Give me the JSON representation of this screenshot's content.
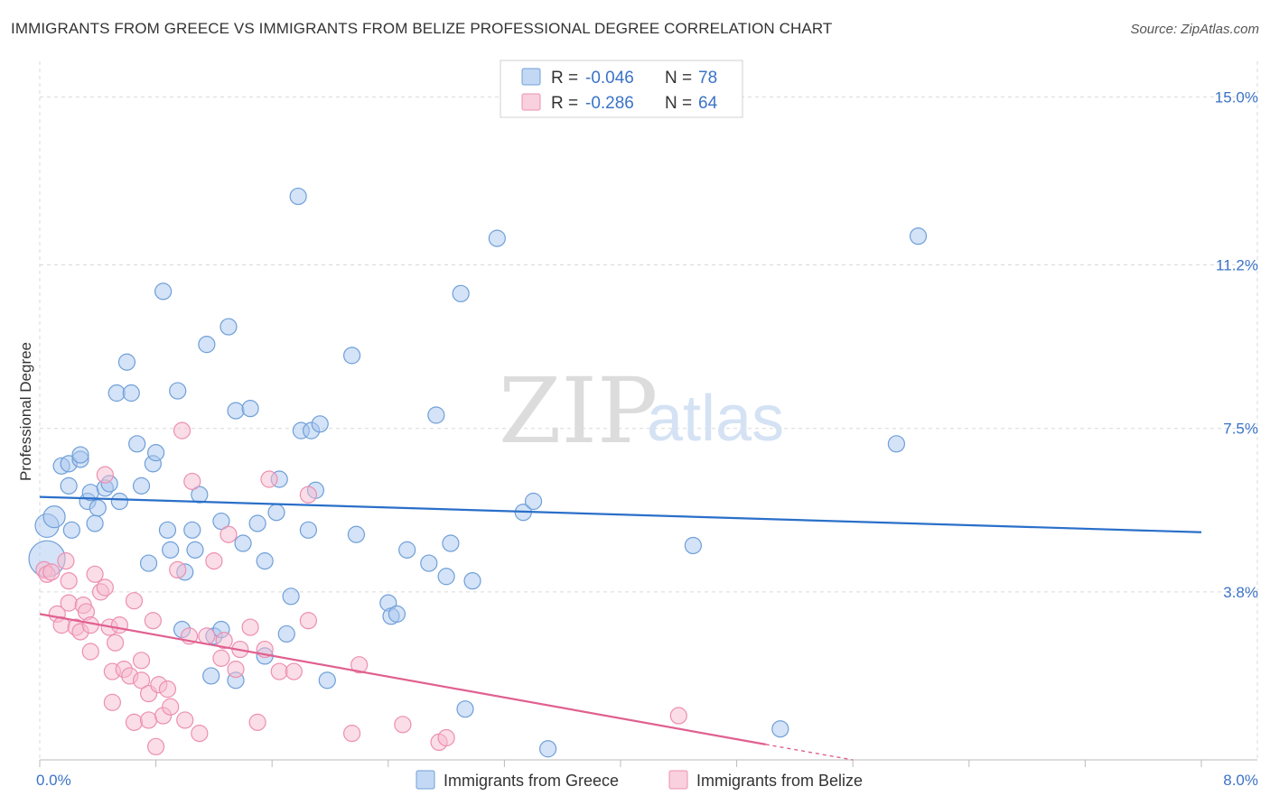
{
  "header": {
    "title": "IMMIGRANTS FROM GREECE VS IMMIGRANTS FROM BELIZE PROFESSIONAL DEGREE CORRELATION CHART",
    "source": "Source: ZipAtlas.com"
  },
  "watermark": {
    "zip": "ZIP",
    "atlas": "atlas"
  },
  "legend": {
    "rows": [
      {
        "r_label": "R =",
        "r_value": "-0.046",
        "n_label": "N =",
        "n_value": "78"
      },
      {
        "r_label": "R =",
        "r_value": "-0.286",
        "n_label": "N =",
        "n_value": "64"
      }
    ]
  },
  "colors": {
    "greece_fill": "#a9c8ef",
    "greece_stroke": "#6f9fd8",
    "greece_line": "#2a6fc9",
    "belize_fill": "#f7bcd0",
    "belize_stroke": "#ec8fb0",
    "belize_line": "#e0608f",
    "grid": "#d9d9d9",
    "tick_text": "#3b73c7"
  },
  "chart_data": {
    "type": "scatter",
    "title": "IMMIGRANTS FROM GREECE VS IMMIGRANTS FROM BELIZE PROFESSIONAL DEGREE CORRELATION CHART",
    "xlabel": "",
    "ylabel": "Professional Degree",
    "xlim": [
      0,
      8
    ],
    "ylim": [
      0,
      15.6
    ],
    "x_tick_labels": [
      {
        "value": 0,
        "label": "0.0%"
      },
      {
        "value": 8,
        "label": "8.0%"
      }
    ],
    "y_tick_labels": [
      {
        "value": 3.8,
        "label": "3.8%"
      },
      {
        "value": 7.5,
        "label": "7.5%"
      },
      {
        "value": 11.2,
        "label": "11.2%"
      },
      {
        "value": 15.0,
        "label": "15.0%"
      }
    ],
    "series": [
      {
        "name": "Immigrants from Greece",
        "trend": {
          "x": [
            0,
            8
          ],
          "y": [
            5.95,
            5.15
          ]
        },
        "points": [
          [
            0.05,
            4.55
          ],
          [
            0.05,
            5.3
          ],
          [
            0.1,
            5.5
          ],
          [
            0.2,
            6.2
          ],
          [
            0.15,
            6.65
          ],
          [
            0.2,
            6.7
          ],
          [
            0.22,
            5.2
          ],
          [
            0.28,
            6.8
          ],
          [
            0.28,
            6.9
          ],
          [
            0.33,
            5.85
          ],
          [
            0.35,
            6.05
          ],
          [
            0.38,
            5.35
          ],
          [
            0.4,
            5.7
          ],
          [
            0.45,
            6.15
          ],
          [
            0.48,
            6.25
          ],
          [
            0.55,
            5.85
          ],
          [
            0.53,
            8.3
          ],
          [
            0.6,
            9.0
          ],
          [
            0.63,
            8.3
          ],
          [
            0.67,
            7.15
          ],
          [
            0.7,
            6.2
          ],
          [
            0.75,
            4.45
          ],
          [
            0.78,
            6.7
          ],
          [
            0.8,
            6.95
          ],
          [
            0.85,
            10.6
          ],
          [
            0.88,
            5.2
          ],
          [
            0.9,
            4.75
          ],
          [
            0.95,
            8.35
          ],
          [
            0.98,
            2.95
          ],
          [
            1.0,
            4.25
          ],
          [
            1.05,
            5.2
          ],
          [
            1.07,
            4.75
          ],
          [
            1.1,
            6.0
          ],
          [
            1.15,
            9.4
          ],
          [
            1.18,
            1.9
          ],
          [
            1.2,
            2.8
          ],
          [
            1.25,
            5.4
          ],
          [
            1.25,
            2.95
          ],
          [
            1.3,
            9.8
          ],
          [
            1.35,
            7.9
          ],
          [
            1.35,
            1.8
          ],
          [
            1.4,
            4.9
          ],
          [
            1.45,
            7.95
          ],
          [
            1.5,
            5.35
          ],
          [
            1.55,
            4.5
          ],
          [
            1.55,
            2.35
          ],
          [
            1.63,
            5.6
          ],
          [
            1.65,
            6.35
          ],
          [
            1.7,
            2.85
          ],
          [
            1.73,
            3.7
          ],
          [
            1.78,
            12.75
          ],
          [
            1.8,
            7.45
          ],
          [
            1.87,
            7.45
          ],
          [
            1.85,
            5.2
          ],
          [
            1.9,
            6.1
          ],
          [
            1.93,
            7.6
          ],
          [
            1.98,
            1.8
          ],
          [
            2.15,
            9.15
          ],
          [
            2.18,
            5.1
          ],
          [
            2.4,
            3.55
          ],
          [
            2.42,
            3.25
          ],
          [
            2.46,
            3.3
          ],
          [
            2.53,
            4.75
          ],
          [
            2.68,
            4.45
          ],
          [
            2.73,
            7.8
          ],
          [
            2.8,
            4.15
          ],
          [
            2.83,
            4.9
          ],
          [
            2.9,
            10.55
          ],
          [
            2.93,
            1.15
          ],
          [
            2.98,
            4.05
          ],
          [
            3.15,
            11.8
          ],
          [
            3.33,
            5.6
          ],
          [
            3.4,
            5.85
          ],
          [
            3.5,
            0.25
          ],
          [
            4.5,
            4.85
          ],
          [
            5.1,
            0.7
          ],
          [
            5.9,
            7.15
          ],
          [
            6.05,
            11.85
          ]
        ]
      },
      {
        "name": "Immigrants from Belize",
        "trend": {
          "x": [
            0,
            5.0
          ],
          "y": [
            3.3,
            0.35
          ]
        },
        "trend_extension": {
          "x": [
            5.0,
            5.6
          ],
          "y": [
            0.35,
            0.0
          ]
        },
        "points": [
          [
            0.03,
            4.3
          ],
          [
            0.05,
            4.2
          ],
          [
            0.08,
            4.25
          ],
          [
            0.12,
            3.3
          ],
          [
            0.15,
            3.05
          ],
          [
            0.18,
            4.5
          ],
          [
            0.2,
            3.55
          ],
          [
            0.2,
            4.05
          ],
          [
            0.25,
            3.0
          ],
          [
            0.28,
            2.9
          ],
          [
            0.3,
            3.5
          ],
          [
            0.32,
            3.35
          ],
          [
            0.35,
            3.05
          ],
          [
            0.35,
            2.45
          ],
          [
            0.38,
            4.2
          ],
          [
            0.42,
            3.8
          ],
          [
            0.45,
            3.9
          ],
          [
            0.45,
            6.45
          ],
          [
            0.48,
            3.0
          ],
          [
            0.5,
            2.0
          ],
          [
            0.5,
            1.3
          ],
          [
            0.52,
            2.65
          ],
          [
            0.55,
            3.05
          ],
          [
            0.58,
            2.05
          ],
          [
            0.62,
            1.9
          ],
          [
            0.65,
            3.6
          ],
          [
            0.65,
            0.85
          ],
          [
            0.7,
            2.25
          ],
          [
            0.7,
            1.8
          ],
          [
            0.75,
            0.9
          ],
          [
            0.75,
            1.5
          ],
          [
            0.78,
            3.15
          ],
          [
            0.8,
            0.3
          ],
          [
            0.82,
            1.7
          ],
          [
            0.85,
            1.0
          ],
          [
            0.88,
            1.6
          ],
          [
            0.9,
            1.2
          ],
          [
            0.95,
            4.3
          ],
          [
            0.98,
            7.45
          ],
          [
            1.0,
            0.9
          ],
          [
            1.03,
            2.8
          ],
          [
            1.05,
            6.3
          ],
          [
            1.1,
            0.6
          ],
          [
            1.15,
            2.8
          ],
          [
            1.2,
            4.5
          ],
          [
            1.25,
            2.3
          ],
          [
            1.27,
            2.7
          ],
          [
            1.3,
            5.1
          ],
          [
            1.35,
            2.05
          ],
          [
            1.38,
            2.5
          ],
          [
            1.45,
            3.0
          ],
          [
            1.5,
            0.85
          ],
          [
            1.55,
            2.5
          ],
          [
            1.58,
            6.35
          ],
          [
            1.65,
            2.0
          ],
          [
            1.75,
            2.0
          ],
          [
            1.85,
            6.0
          ],
          [
            1.85,
            3.15
          ],
          [
            2.15,
            0.6
          ],
          [
            2.2,
            2.15
          ],
          [
            2.5,
            0.8
          ],
          [
            2.75,
            0.4
          ],
          [
            2.8,
            0.5
          ],
          [
            4.4,
            1.0
          ]
        ]
      }
    ]
  },
  "bottom_legend": [
    {
      "label": "Immigrants from Greece"
    },
    {
      "label": "Immigrants from Belize"
    }
  ]
}
